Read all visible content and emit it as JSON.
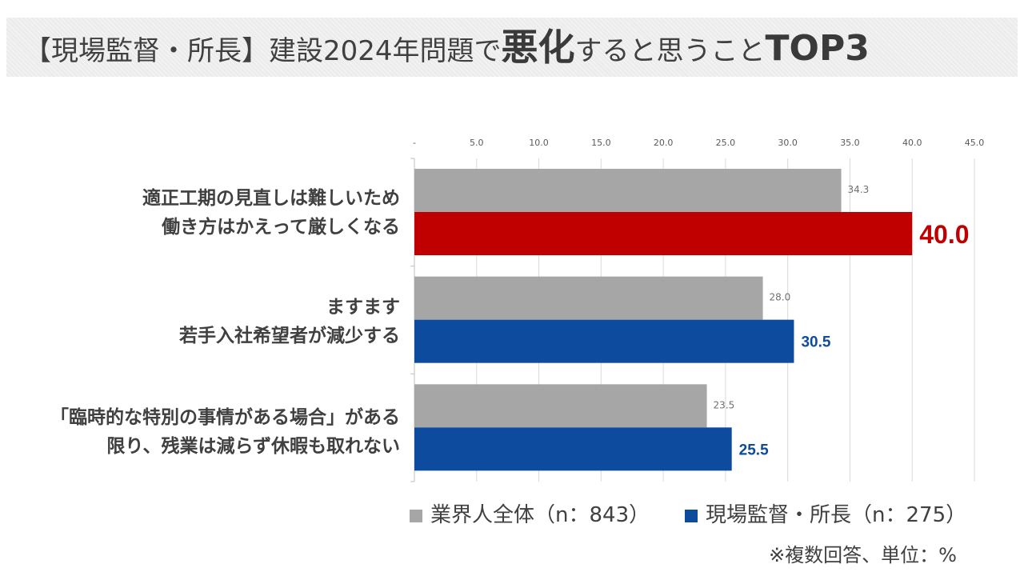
{
  "title": {
    "prefix": "【現場監督・所長】建設2024年問題で",
    "emphasis": "悪化",
    "middle": "すると思うこと",
    "top": "TOP3"
  },
  "colors": {
    "all": "#a6a6a6",
    "manager": "#0d4b9e",
    "highlight": "#c00000",
    "axis": "#595959",
    "grid": "#d9d9d9"
  },
  "chart_data": {
    "type": "bar",
    "orientation": "horizontal",
    "title": "【現場監督・所長】建設2024年問題で悪化すると思うことTOP3",
    "unit": "%",
    "xlim": [
      0,
      45
    ],
    "ticks": [
      "-",
      "5.0",
      "10.0",
      "15.0",
      "20.0",
      "25.0",
      "30.0",
      "35.0",
      "40.0",
      "45.0"
    ],
    "tick_values": [
      0,
      5,
      10,
      15,
      20,
      25,
      30,
      35,
      40,
      45
    ],
    "grid": true,
    "categories": [
      [
        "適正工期の見直しは難しいため",
        "働き方はかえって厳しくなる"
      ],
      [
        "ますます",
        "若手入社希望者が減少する"
      ],
      [
        "「臨時的な特別の事情がある場合」がある",
        "限り、残業は減らず休暇も取れない"
      ]
    ],
    "series": [
      {
        "name": "業界人全体（n：843）",
        "values": [
          34.3,
          28.0,
          23.5
        ],
        "labels": [
          "34.3",
          "28.0",
          "23.5"
        ]
      },
      {
        "name": "現場監督・所長（n：275）",
        "values": [
          40.0,
          30.5,
          25.5
        ],
        "labels": [
          "40.0",
          "30.5",
          "25.5"
        ]
      }
    ],
    "legend": "bottom"
  },
  "note": "※複数回答、単位：%"
}
